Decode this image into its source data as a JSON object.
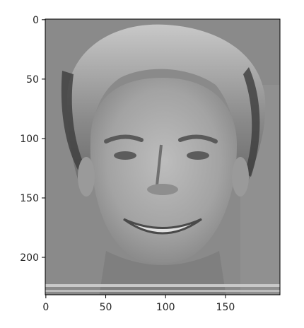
{
  "chart_data": {
    "type": "image",
    "colormap": "gray",
    "x": {
      "lim": [
        -0.5,
        195.5
      ],
      "ticks": [
        0,
        50,
        100,
        150
      ],
      "tick_labels": [
        "0",
        "50",
        "100",
        "150"
      ]
    },
    "y": {
      "lim": [
        231.5,
        -0.5
      ],
      "ticks": [
        0,
        50,
        100,
        150,
        200
      ],
      "tick_labels": [
        "0",
        "50",
        "100",
        "150",
        "200"
      ]
    },
    "colors": {
      "background_gray": "#8a8a8a",
      "hair_gray": "#6e6e6e",
      "skin_gray": "#a8a8a8",
      "shadow_gray": "#3c3c3c",
      "highlight_gray": "#dcdcdc"
    }
  }
}
